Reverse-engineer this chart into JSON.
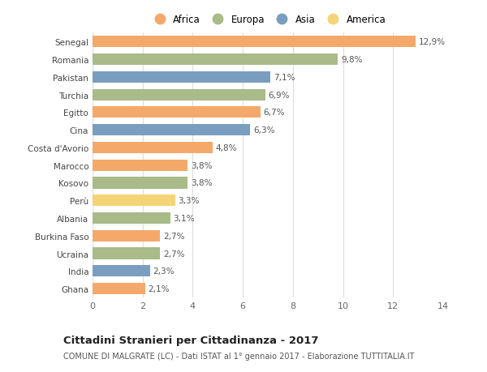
{
  "categories": [
    "Senegal",
    "Romania",
    "Pakistan",
    "Turchia",
    "Egitto",
    "Cina",
    "Costa d'Avorio",
    "Marocco",
    "Kosovo",
    "Perù",
    "Albania",
    "Burkina Faso",
    "Ucraina",
    "India",
    "Ghana"
  ],
  "values": [
    12.9,
    9.8,
    7.1,
    6.9,
    6.7,
    6.3,
    4.8,
    3.8,
    3.8,
    3.3,
    3.1,
    2.7,
    2.7,
    2.3,
    2.1
  ],
  "labels": [
    "12,9%",
    "9,8%",
    "7,1%",
    "6,9%",
    "6,7%",
    "6,3%",
    "4,8%",
    "3,8%",
    "3,8%",
    "3,3%",
    "3,1%",
    "2,7%",
    "2,7%",
    "2,3%",
    "2,1%"
  ],
  "continent": [
    "Africa",
    "Europa",
    "Asia",
    "Europa",
    "Africa",
    "Asia",
    "Africa",
    "Africa",
    "Europa",
    "America",
    "Europa",
    "Africa",
    "Europa",
    "Asia",
    "Africa"
  ],
  "continent_colors": {
    "Africa": "#F4A96A",
    "Europa": "#A8BB88",
    "Asia": "#7A9EC0",
    "America": "#F5D478"
  },
  "legend_order": [
    "Africa",
    "Europa",
    "Asia",
    "America"
  ],
  "xlim": [
    0,
    14
  ],
  "xticks": [
    0,
    2,
    4,
    6,
    8,
    10,
    12,
    14
  ],
  "title": "Cittadini Stranieri per Cittadinanza - 2017",
  "subtitle": "COMUNE DI MALGRATE (LC) - Dati ISTAT al 1° gennaio 2017 - Elaborazione TUTTITALIA.IT",
  "bg_color": "#ffffff",
  "grid_color": "#dddddd",
  "bar_height": 0.65,
  "label_fontsize": 7.5,
  "title_fontsize": 9.5,
  "subtitle_fontsize": 7.0,
  "tick_fontsize": 8,
  "ytick_fontsize": 7.5
}
